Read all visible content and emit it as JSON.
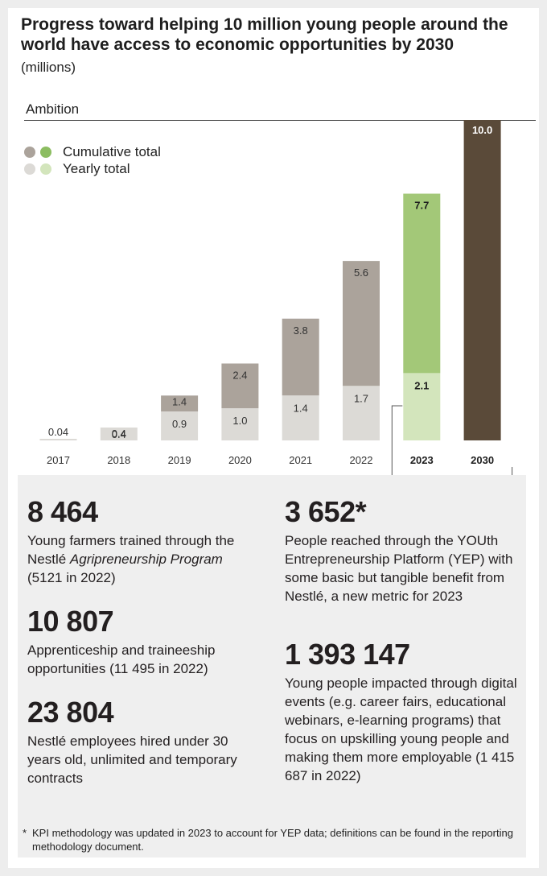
{
  "header": {
    "title": "Progress toward helping 10 million young people around the world have access to economic opportunities by 2030",
    "subtitle": "(millions)",
    "ambition_label": "Ambition"
  },
  "legend": [
    {
      "label": "Cumulative total",
      "colors": [
        "#aba39b",
        "#8cbd61"
      ]
    },
    {
      "label": "Yearly total",
      "colors": [
        "#dcdad6",
        "#d3e5bc"
      ]
    }
  ],
  "colors": {
    "cumulative": "#aba39b",
    "yearly": "#dcdad6",
    "cumulative_current": "#a3c878",
    "yearly_current": "#d3e5bc",
    "ambition": "#5a4a39"
  },
  "chart_data": {
    "type": "bar",
    "categories": [
      "2017",
      "2018",
      "2019",
      "2020",
      "2021",
      "2022",
      "2023",
      "2030"
    ],
    "series": [
      {
        "name": "Yearly total",
        "values": [
          0.04,
          0.4,
          0.9,
          1.0,
          1.4,
          1.7,
          2.1,
          null
        ],
        "labels": [
          "0.04",
          "0.4",
          "0.9",
          "1.0",
          "1.4",
          "1.7",
          "2.1",
          ""
        ]
      },
      {
        "name": "Cumulative total",
        "values": [
          0.04,
          0.4,
          1.4,
          2.4,
          3.8,
          5.6,
          7.7,
          10.0
        ],
        "labels": [
          "",
          "0.4",
          "1.4",
          "2.4",
          "3.8",
          "5.6",
          "7.7",
          "10.0"
        ]
      }
    ],
    "ambition": {
      "year": "2030",
      "value": 10.0
    },
    "highlight_categories": [
      "2023",
      "2030"
    ],
    "ylim": [
      0,
      10.0
    ],
    "legend_position": "top-left"
  },
  "stats": {
    "left": [
      {
        "value": "8 464",
        "desc_parts": [
          "Young farmers trained through the Nestlé ",
          "Agripreneurship Program",
          " (5121 in 2022)"
        ]
      },
      {
        "value": "10 807",
        "desc_parts": [
          "Apprenticeship and traineeship opportunities (11 495 in 2022)"
        ]
      },
      {
        "value": "23 804",
        "desc_parts": [
          "Nestlé employees hired under 30 years old, unlimited and temporary contracts"
        ]
      }
    ],
    "right": [
      {
        "value": "3 652*",
        "desc_parts": [
          "People reached through the YOUth Entrepreneurship Platform (YEP) with some basic but tangible benefit from Nestlé, a new metric for 2023"
        ]
      },
      {
        "value": "1 393 147",
        "desc_parts": [
          "Young people impacted through digital events (e.g. career fairs, educational webinars, e-learning programs) that focus on upskilling young people and making them more employable (1 415 687 in 2022)"
        ]
      }
    ]
  },
  "footnote": {
    "marker": "*",
    "text": "KPI methodology was updated in 2023 to account for YEP data; definitions can be found in the reporting methodology document."
  }
}
